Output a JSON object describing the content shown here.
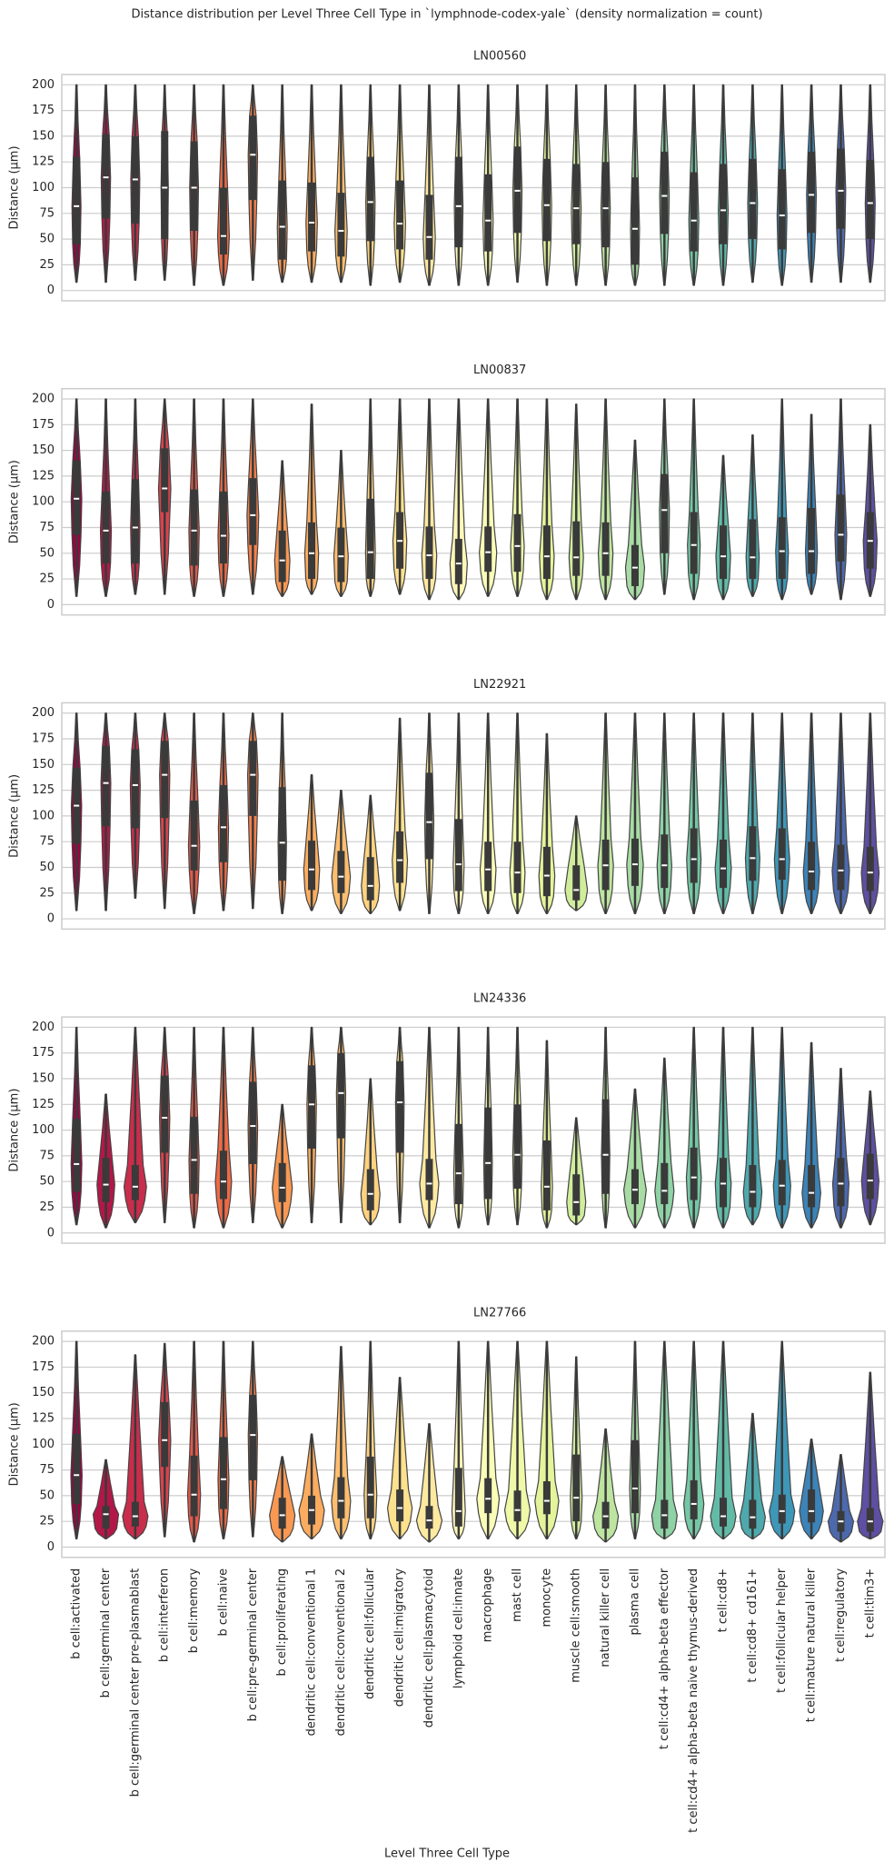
{
  "title": "Distance distribution per Level Three Cell Type in `lymphnode-codex-yale` (density normalization = count)",
  "xlabel": "Level Three Cell Type",
  "categories": [
    "b cell:activated",
    "b cell:germinal center",
    "b cell:germinal center pre-plasmablast",
    "b cell:interferon",
    "b cell:memory",
    "b cell:naive",
    "b cell:pre-germinal center",
    "b cell:proliferating",
    "dendritic cell:conventional 1",
    "dendritic cell:conventional 2",
    "dendritic cell:follicular",
    "dendritic cell:migratory",
    "dendritic cell:plasmacytoid",
    "lymphoid cell:innate",
    "macrophage",
    "mast cell",
    "monocyte",
    "muscle cell:smooth",
    "natural killer cell",
    "plasma cell",
    "t cell:cd4+ alpha-beta effector",
    "t cell:cd4+ alpha-beta naive thymus-derived",
    "t cell:cd8+",
    "t cell:cd8+ cd161+",
    "t cell:follicular helper",
    "t cell:mature natural killer",
    "t cell:regulatory",
    "t cell:tim3+"
  ],
  "colors": [
    "#9e0142",
    "#b41747",
    "#c92d4b",
    "#d8434e",
    "#e55749",
    "#f06a44",
    "#f57f4a",
    "#f99853",
    "#fcac5f",
    "#fdbe6e",
    "#fed27e",
    "#fee18d",
    "#fee9a1",
    "#fff7b8",
    "#fafdb6",
    "#eff9a8",
    "#e4f49a",
    "#d1ed9c",
    "#bde5a0",
    "#a8dca4",
    "#8ed2a5",
    "#75c8a5",
    "#62bba7",
    "#4ea9ad",
    "#3d97b8",
    "#3c83b8",
    "#4d69ad",
    "#5e4fa2"
  ],
  "chart_data": [
    {
      "type": "violin",
      "title": "LN00560",
      "ylabel": "Distance (µm)",
      "ylim": [
        -10,
        210
      ],
      "yticks": [
        0,
        25,
        50,
        75,
        100,
        125,
        150,
        175,
        200
      ],
      "grid": true,
      "whisker_low": [
        8,
        8,
        10,
        10,
        5,
        5,
        10,
        8,
        8,
        8,
        5,
        8,
        5,
        5,
        5,
        8,
        5,
        5,
        5,
        5,
        5,
        5,
        5,
        8,
        5,
        8,
        8,
        8
      ],
      "q1": [
        45,
        70,
        65,
        50,
        58,
        35,
        88,
        30,
        38,
        33,
        48,
        40,
        30,
        42,
        38,
        56,
        48,
        45,
        42,
        25,
        55,
        38,
        45,
        50,
        40,
        56,
        60,
        50
      ],
      "median": [
        82,
        110,
        108,
        100,
        100,
        53,
        132,
        62,
        66,
        58,
        86,
        65,
        52,
        82,
        68,
        97,
        83,
        80,
        80,
        60,
        92,
        68,
        78,
        85,
        73,
        93,
        97,
        85
      ],
      "q3": [
        130,
        152,
        150,
        155,
        145,
        100,
        170,
        107,
        105,
        95,
        130,
        107,
        93,
        130,
        113,
        140,
        128,
        123,
        125,
        110,
        135,
        115,
        123,
        128,
        118,
        135,
        138,
        127
      ],
      "whisker_high": [
        200,
        200,
        200,
        200,
        200,
        200,
        200,
        200,
        200,
        200,
        200,
        200,
        200,
        200,
        200,
        200,
        200,
        200,
        200,
        200,
        200,
        200,
        200,
        200,
        200,
        200,
        200,
        200
      ]
    },
    {
      "type": "violin",
      "title": "LN00837",
      "ylabel": "Distance (µm)",
      "ylim": [
        -10,
        210
      ],
      "yticks": [
        0,
        25,
        50,
        75,
        100,
        125,
        150,
        175,
        200
      ],
      "grid": true,
      "whisker_low": [
        8,
        8,
        10,
        10,
        8,
        8,
        10,
        8,
        10,
        8,
        8,
        10,
        5,
        5,
        8,
        8,
        5,
        5,
        5,
        5,
        10,
        5,
        5,
        8,
        5,
        10,
        5,
        8
      ],
      "q1": [
        68,
        40,
        40,
        90,
        38,
        40,
        58,
        22,
        25,
        22,
        25,
        35,
        25,
        20,
        32,
        32,
        25,
        28,
        28,
        18,
        50,
        30,
        25,
        25,
        25,
        30,
        42,
        35
      ],
      "median": [
        103,
        72,
        75,
        113,
        72,
        67,
        87,
        43,
        50,
        47,
        51,
        62,
        48,
        40,
        51,
        57,
        47,
        46,
        50,
        36,
        92,
        58,
        47,
        46,
        52,
        52,
        68,
        62
      ],
      "q3": [
        140,
        110,
        122,
        152,
        112,
        110,
        123,
        72,
        80,
        75,
        103,
        90,
        76,
        64,
        76,
        88,
        77,
        81,
        80,
        58,
        127,
        90,
        77,
        83,
        85,
        94,
        107,
        90
      ],
      "whisker_high": [
        200,
        200,
        200,
        200,
        200,
        200,
        200,
        140,
        195,
        150,
        200,
        200,
        200,
        200,
        200,
        200,
        200,
        195,
        200,
        160,
        200,
        200,
        145,
        165,
        200,
        185,
        200,
        175
      ]
    },
    {
      "type": "violin",
      "title": "LN22921",
      "ylabel": "Distance (µm)",
      "ylim": [
        -10,
        210
      ],
      "yticks": [
        0,
        25,
        50,
        75,
        100,
        125,
        150,
        175,
        200
      ],
      "grid": true,
      "whisker_low": [
        8,
        8,
        20,
        10,
        5,
        8,
        10,
        5,
        8,
        5,
        5,
        8,
        5,
        5,
        5,
        5,
        5,
        8,
        5,
        5,
        5,
        5,
        5,
        5,
        5,
        5,
        5,
        5
      ],
      "q1": [
        73,
        90,
        88,
        98,
        47,
        55,
        100,
        37,
        28,
        25,
        18,
        35,
        58,
        27,
        27,
        25,
        22,
        18,
        28,
        32,
        30,
        35,
        30,
        37,
        38,
        28,
        28,
        27
      ],
      "median": [
        110,
        132,
        130,
        140,
        71,
        89,
        140,
        74,
        48,
        41,
        32,
        57,
        94,
        53,
        48,
        45,
        42,
        28,
        52,
        53,
        52,
        58,
        49,
        59,
        58,
        46,
        47,
        45
      ],
      "q3": [
        147,
        168,
        165,
        173,
        115,
        130,
        173,
        128,
        76,
        66,
        60,
        85,
        142,
        97,
        75,
        75,
        70,
        52,
        77,
        78,
        82,
        88,
        77,
        90,
        88,
        75,
        72,
        70
      ],
      "whisker_high": [
        200,
        200,
        200,
        200,
        200,
        200,
        200,
        200,
        140,
        125,
        120,
        195,
        200,
        200,
        200,
        200,
        180,
        100,
        200,
        200,
        200,
        200,
        200,
        200,
        200,
        200,
        200,
        200
      ]
    },
    {
      "type": "violin",
      "title": "LN24336",
      "ylabel": "Distance (µm)",
      "ylim": [
        -10,
        210
      ],
      "yticks": [
        0,
        25,
        50,
        75,
        100,
        125,
        150,
        175,
        200
      ],
      "grid": true,
      "whisker_low": [
        8,
        5,
        10,
        10,
        5,
        5,
        10,
        5,
        10,
        10,
        8,
        10,
        5,
        5,
        8,
        8,
        5,
        8,
        5,
        5,
        5,
        5,
        5,
        8,
        5,
        5,
        5,
        8
      ],
      "q1": [
        40,
        30,
        32,
        78,
        38,
        33,
        67,
        30,
        82,
        92,
        22,
        78,
        32,
        28,
        33,
        43,
        22,
        17,
        38,
        28,
        28,
        32,
        25,
        25,
        27,
        25,
        26,
        33
      ],
      "median": [
        67,
        47,
        45,
        112,
        71,
        50,
        104,
        44,
        125,
        136,
        38,
        127,
        48,
        58,
        68,
        76,
        45,
        30,
        76,
        42,
        41,
        54,
        48,
        40,
        46,
        39,
        48,
        51
      ],
      "q3": [
        111,
        73,
        66,
        153,
        113,
        80,
        147,
        68,
        163,
        175,
        62,
        167,
        72,
        106,
        122,
        125,
        90,
        57,
        130,
        62,
        68,
        83,
        73,
        66,
        71,
        66,
        73,
        77
      ],
      "whisker_high": [
        200,
        135,
        200,
        200,
        200,
        200,
        200,
        125,
        200,
        200,
        150,
        200,
        200,
        200,
        200,
        200,
        187,
        112,
        200,
        140,
        170,
        200,
        200,
        200,
        200,
        185,
        160,
        138
      ]
    },
    {
      "type": "violin",
      "title": "LN27766",
      "ylabel": "Distance (µm)",
      "ylim": [
        -10,
        210
      ],
      "yticks": [
        0,
        25,
        50,
        75,
        100,
        125,
        150,
        175,
        200
      ],
      "grid": true,
      "whisker_low": [
        8,
        8,
        8,
        10,
        5,
        8,
        10,
        5,
        8,
        8,
        8,
        8,
        5,
        8,
        8,
        8,
        8,
        8,
        5,
        8,
        8,
        8,
        8,
        8,
        8,
        8,
        5,
        8
      ],
      "q1": [
        42,
        18,
        20,
        78,
        30,
        37,
        65,
        18,
        22,
        28,
        28,
        25,
        18,
        20,
        33,
        25,
        32,
        25,
        18,
        33,
        18,
        27,
        20,
        18,
        23,
        24,
        15,
        15
      ],
      "median": [
        70,
        32,
        30,
        104,
        51,
        66,
        109,
        31,
        36,
        45,
        51,
        38,
        26,
        35,
        47,
        36,
        45,
        48,
        30,
        57,
        31,
        42,
        30,
        29,
        35,
        35,
        25,
        25
      ],
      "q3": [
        110,
        40,
        44,
        141,
        89,
        107,
        148,
        48,
        50,
        68,
        88,
        56,
        40,
        77,
        67,
        55,
        64,
        90,
        44,
        104,
        46,
        65,
        48,
        46,
        51,
        56,
        35,
        38
      ],
      "whisker_high": [
        200,
        85,
        187,
        198,
        200,
        200,
        200,
        88,
        110,
        195,
        200,
        165,
        120,
        200,
        200,
        200,
        200,
        185,
        115,
        200,
        200,
        200,
        200,
        130,
        200,
        105,
        90,
        170
      ]
    }
  ]
}
